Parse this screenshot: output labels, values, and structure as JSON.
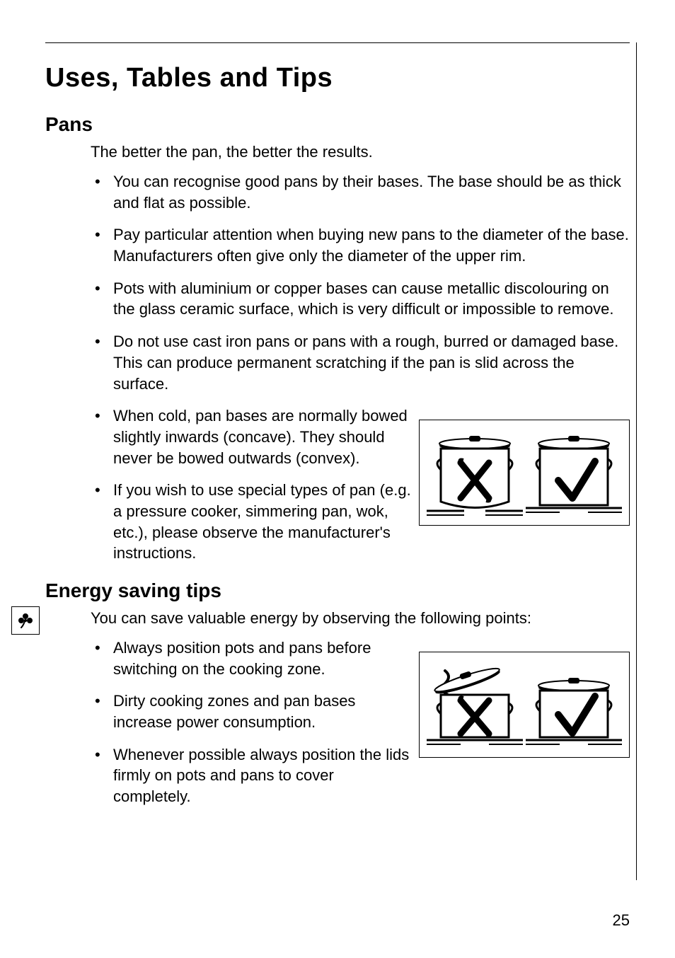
{
  "page": {
    "number": "25",
    "title": "Uses, Tables and Tips"
  },
  "sections": {
    "pans": {
      "heading": "Pans",
      "intro": "The better the pan, the better the results.",
      "bullets": [
        "You can recognise good pans by their bases. The base should be as thick and flat as possible.",
        "Pay particular attention when buying new pans to the diameter of the base. Manufacturers often give only the diameter of the upper rim.",
        "Pots with aluminium or copper bases can cause metallic discolouring on the glass ceramic surface, which is very difficult or impossible to remove.",
        "Do not use cast iron pans or pans with a rough, burred or damaged base. This can produce permanent scratching if the pan is slid across the surface.",
        "When cold, pan bases are normally bowed slightly inwards (concave). They should never be bowed outwards (convex).",
        "If you wish to use special types of pan (e.g. a pressure cooker, simmering pan, wok, etc.), please observe the manufacturer's instructions."
      ]
    },
    "energy": {
      "heading": "Energy saving tips",
      "intro": "You can save valuable energy by observing the following points:",
      "bullets": [
        "Always position pots and pans before switching on the cooking zone.",
        "Dirty cooking zones and pan bases increase power consumption.",
        "Whenever possible always position the lids firmly on pots and pans to cover completely."
      ]
    }
  },
  "figures": {
    "pan_base": {
      "type": "infographic",
      "wrong_mark": "✗",
      "right_mark": "✓",
      "stroke_color": "#000000",
      "fill_color": "#ffffff",
      "background_color": "#ffffff",
      "border_color": "#000000",
      "mark_stroke_width": 9
    },
    "lid": {
      "type": "infographic",
      "wrong_mark": "✗",
      "right_mark": "✓",
      "stroke_color": "#000000",
      "fill_color": "#ffffff",
      "background_color": "#ffffff",
      "border_color": "#000000",
      "mark_stroke_width": 9
    }
  },
  "colors": {
    "text": "#000000",
    "background": "#ffffff",
    "rule": "#000000"
  },
  "typography": {
    "h1_size_pt": 28,
    "h2_size_pt": 21,
    "body_size_pt": 16,
    "font_family": "Arial"
  }
}
